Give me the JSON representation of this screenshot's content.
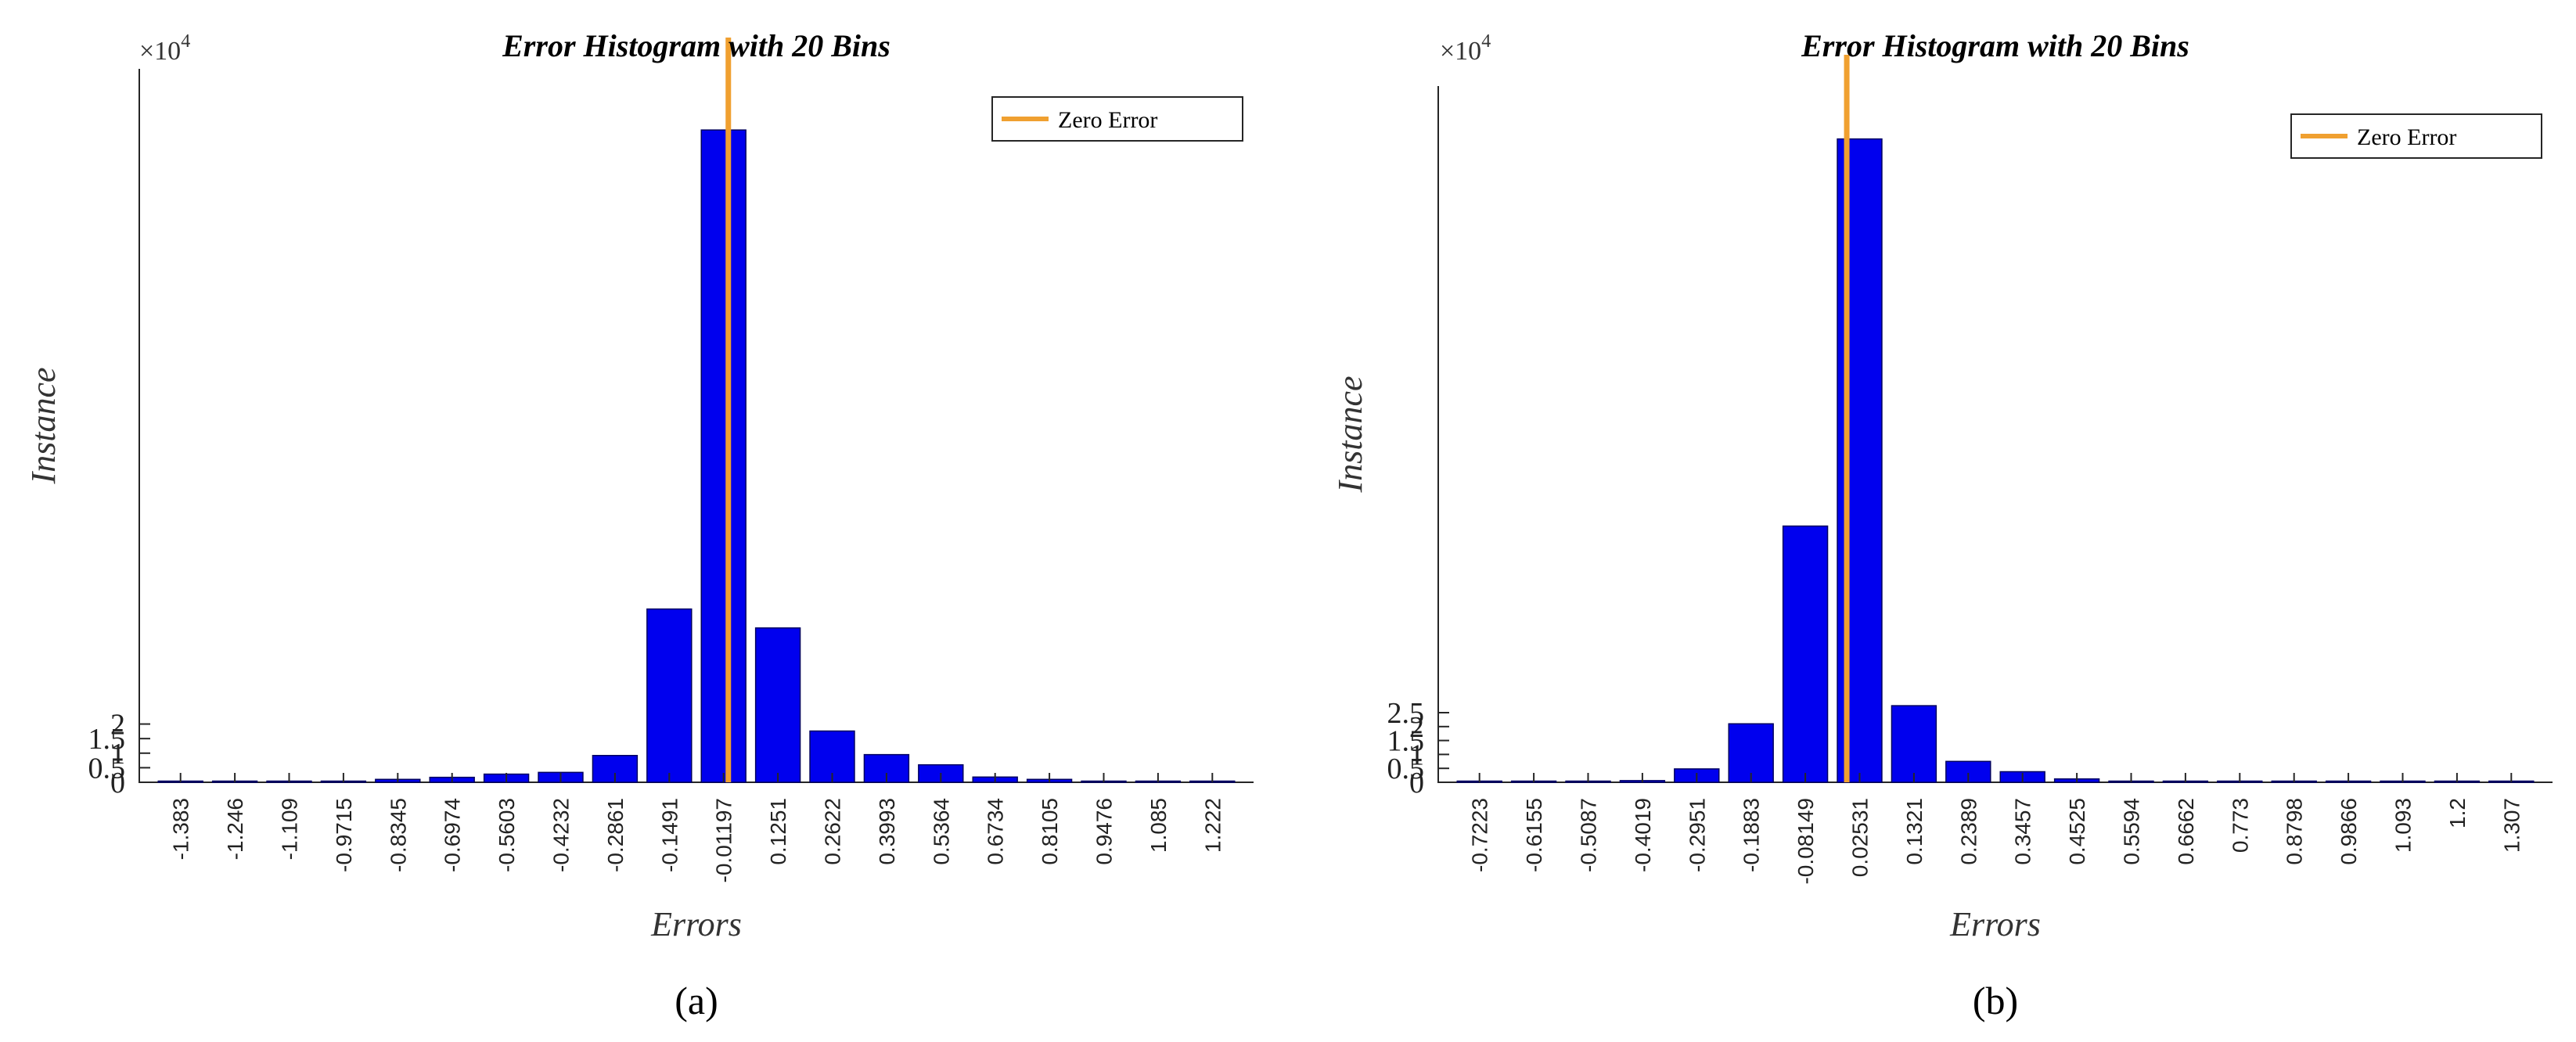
{
  "colors": {
    "bar": "#0000EE",
    "zero_line": "#F0A030",
    "axis": "#262626"
  },
  "chart_data": [
    {
      "type": "bar",
      "caption": "(a)",
      "title": "Error Histogram with 20 Bins",
      "xlabel": "Errors",
      "ylabel": "Instance",
      "y_exponent_base": "×10",
      "y_exponent_power": "4",
      "legend": "Zero Error",
      "legend_position": "top-right",
      "categories": [
        "-1.383",
        "-1.246",
        "-1.109",
        "-0.9715",
        "-0.8345",
        "-0.6974",
        "-0.5603",
        "-0.4232",
        "-0.2861",
        "-0.1491",
        "-0.01197",
        "0.1251",
        "0.2622",
        "0.3993",
        "0.5364",
        "0.6734",
        "0.8105",
        "0.9476",
        "1.085",
        "1.222"
      ],
      "values": [
        0.002,
        0.003,
        0.005,
        0.04,
        0.1,
        0.17,
        0.28,
        0.34,
        0.92,
        5.95,
        22.4,
        5.3,
        1.76,
        0.95,
        0.6,
        0.18,
        0.1,
        0.03,
        0.01,
        0.005
      ],
      "zero_line_x": 0,
      "ylim": [
        0,
        24.5
      ],
      "yticks": [
        0,
        0.5,
        1,
        1.5,
        2
      ],
      "ytick_labels": [
        "0",
        "0.5",
        "1",
        "1.5",
        "2"
      ]
    },
    {
      "type": "bar",
      "caption": "(b)",
      "title": "Error Histogram with 20 Bins",
      "xlabel": "Errors",
      "ylabel": "Instance",
      "y_exponent_base": "×10",
      "y_exponent_power": "4",
      "legend": "Zero Error",
      "legend_position": "top-right",
      "categories": [
        "-0.7223",
        "-0.6155",
        "-0.5087",
        "-0.4019",
        "-0.2951",
        "-0.1883",
        "-0.08149",
        "0.02531",
        "0.1321",
        "0.2389",
        "0.3457",
        "0.4525",
        "0.5594",
        "0.6662",
        "0.773",
        "0.8798",
        "0.9866",
        "1.093",
        "1.2",
        "1.307"
      ],
      "values": [
        0.003,
        0.005,
        0.01,
        0.06,
        0.48,
        2.1,
        9.2,
        23.1,
        2.75,
        0.75,
        0.38,
        0.12,
        0.04,
        0.01,
        0.005,
        0.003,
        0.002,
        0.002,
        0.001,
        0.001
      ],
      "zero_line_x": 0,
      "ylim": [
        0,
        25
      ],
      "yticks": [
        0,
        0.5,
        1,
        1.5,
        2,
        2.5
      ],
      "ytick_labels": [
        "0",
        "0.5",
        "1",
        "1.5",
        "2",
        "2.5"
      ]
    }
  ]
}
